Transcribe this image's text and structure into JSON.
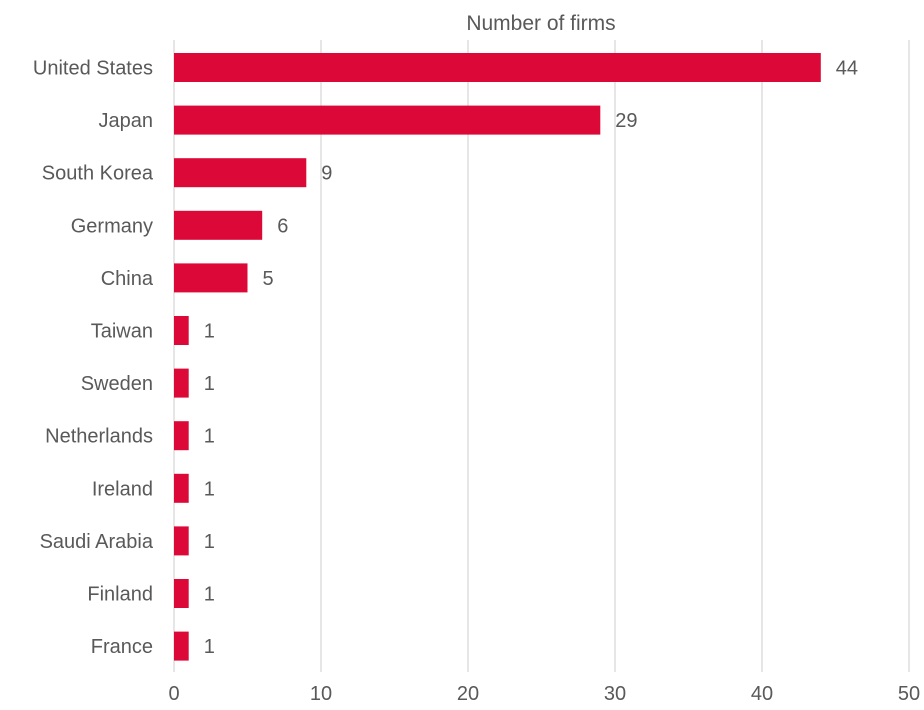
{
  "chart_data": {
    "type": "bar",
    "orientation": "horizontal",
    "title": "Number of firms",
    "xlabel": "",
    "ylabel": "",
    "categories": [
      "United States",
      "Japan",
      "South Korea",
      "Germany",
      "China",
      "Taiwan",
      "Sweden",
      "Netherlands",
      "Ireland",
      "Saudi Arabia",
      "Finland",
      "France"
    ],
    "values": [
      44,
      29,
      9,
      6,
      5,
      1,
      1,
      1,
      1,
      1,
      1,
      1
    ],
    "xlim": [
      0,
      50
    ],
    "xticks": [
      0,
      10,
      20,
      30,
      40,
      50
    ],
    "grid": true,
    "legend": "none",
    "bar_color": "#dc0838",
    "text_color": "#595959",
    "grid_color": "#d9d9d9"
  }
}
